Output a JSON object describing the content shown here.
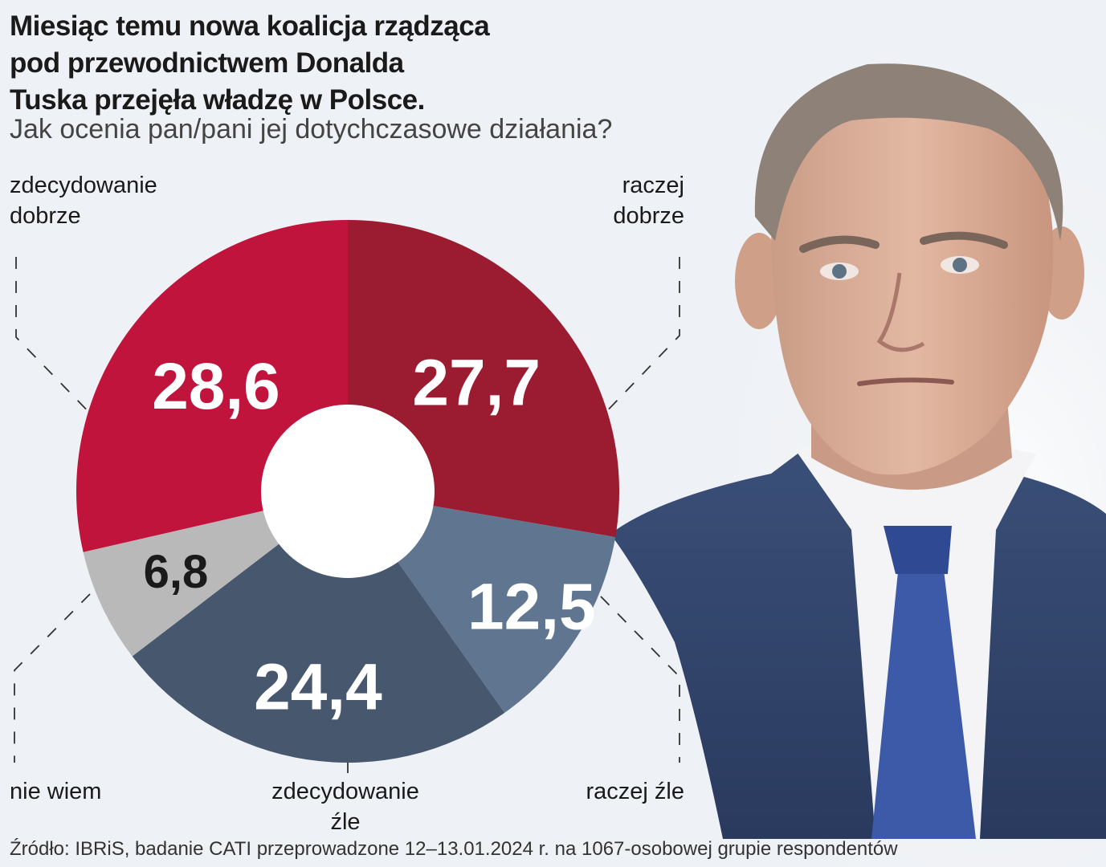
{
  "headline": {
    "lines": [
      "Miesiąc temu nowa koalicja rządząca",
      "pod przewodnictwem Donalda",
      "Tuska przejęła władzę w Polsce."
    ],
    "question": "Jak ocenia pan/pani jej dotychczasowe działania?"
  },
  "labels": {
    "zdecydowanie_dobrze": [
      "zdecydowanie",
      "dobrze"
    ],
    "raczej_dobrze": [
      "raczej",
      "dobrze"
    ],
    "nie_wiem": "nie wiem",
    "zdecydowanie_zle": [
      "zdecydowanie",
      "źle"
    ],
    "raczej_zle": "raczej źle"
  },
  "chart_data": {
    "type": "pie",
    "variant": "donut",
    "start_angle_deg": 0,
    "direction": "clockwise",
    "slices": [
      {
        "label": "raczej dobrze",
        "value_text": "27,7",
        "value": 27.7,
        "color": "#9b1b30",
        "text_color": "#ffffff"
      },
      {
        "label": "raczej źle",
        "value_text": "12,5",
        "value": 12.5,
        "color": "#5f7590",
        "text_color": "#ffffff"
      },
      {
        "label": "zdecydowanie źle",
        "value_text": "24,4",
        "value": 24.4,
        "color": "#47586e",
        "text_color": "#ffffff"
      },
      {
        "label": "nie wiem",
        "value_text": "6,8",
        "value": 6.8,
        "color": "#b9b9b9",
        "text_color": "#1a1a1a"
      },
      {
        "label": "zdecydowanie dobrze",
        "value_text": "28,6",
        "value": 28.6,
        "color": "#c0143c",
        "text_color": "#ffffff"
      }
    ]
  },
  "source": "Źródło: IBRiS, badanie CATI przeprowadzone 12–13.01.2024 r. na 1067-osobowej grupie respondentów"
}
